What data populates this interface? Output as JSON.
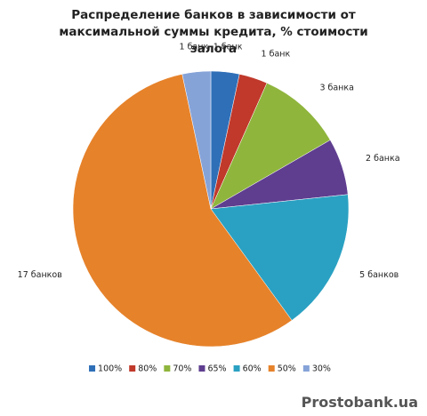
{
  "chart_data": {
    "type": "pie",
    "title": "Распределение банков в зависимости от максимальной суммы кредита, % стоимости залога",
    "categories": [
      "100%",
      "80%",
      "70%",
      "65%",
      "60%",
      "50%",
      "30%"
    ],
    "values": [
      1,
      1,
      3,
      2,
      5,
      17,
      1
    ],
    "value_labels": [
      "1 банк",
      "1 банк",
      "3 банка",
      "2 банка",
      "5 банков",
      "17 банков",
      "1 банк"
    ],
    "colors": [
      "#2f6fb8",
      "#c0392b",
      "#8fb53c",
      "#5f3e90",
      "#2aa1c2",
      "#e6822a",
      "#86a3d8"
    ],
    "legend": "bottom"
  },
  "watermark": "Prostobank.ua"
}
